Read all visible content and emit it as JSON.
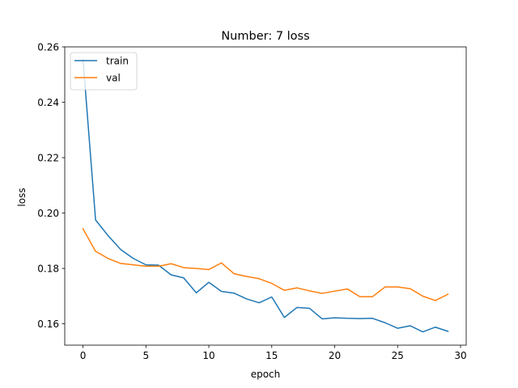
{
  "chart_data": {
    "type": "line",
    "title": "Number: 7 loss",
    "xlabel": "epoch",
    "ylabel": "loss",
    "xlim": [
      -1.45,
      30.45
    ],
    "ylim": [
      0.1523,
      0.26
    ],
    "xticks": [
      0,
      5,
      10,
      15,
      20,
      25,
      30
    ],
    "yticks": [
      0.16,
      0.18,
      0.2,
      0.22,
      0.24,
      0.26
    ],
    "ytick_labels": [
      "0.16",
      "0.18",
      "0.20",
      "0.22",
      "0.24",
      "0.26"
    ],
    "grid": false,
    "legend_position": "upper-left",
    "x": [
      0,
      1,
      2,
      3,
      4,
      5,
      6,
      7,
      8,
      9,
      10,
      11,
      12,
      13,
      14,
      15,
      16,
      17,
      18,
      19,
      20,
      21,
      22,
      23,
      24,
      25,
      26,
      27,
      28,
      29
    ],
    "series": [
      {
        "name": "train",
        "color": "#1f77b4",
        "values": [
          0.2555,
          0.1975,
          0.1918,
          0.1868,
          0.1836,
          0.1813,
          0.1812,
          0.1777,
          0.1766,
          0.1712,
          0.175,
          0.1717,
          0.1711,
          0.169,
          0.1676,
          0.1697,
          0.1623,
          0.1659,
          0.1656,
          0.1618,
          0.1622,
          0.162,
          0.1619,
          0.162,
          0.1604,
          0.1584,
          0.1593,
          0.1571,
          0.1588,
          0.1573
        ]
      },
      {
        "name": "val",
        "color": "#ff7f0e",
        "values": [
          0.1943,
          0.1862,
          0.1836,
          0.1818,
          0.1813,
          0.1808,
          0.1808,
          0.1817,
          0.1803,
          0.18,
          0.1796,
          0.182,
          0.1781,
          0.1771,
          0.1763,
          0.1746,
          0.1721,
          0.173,
          0.1719,
          0.171,
          0.1718,
          0.1726,
          0.1698,
          0.1698,
          0.1733,
          0.1733,
          0.1727,
          0.17,
          0.1684,
          0.1707
        ]
      }
    ]
  }
}
